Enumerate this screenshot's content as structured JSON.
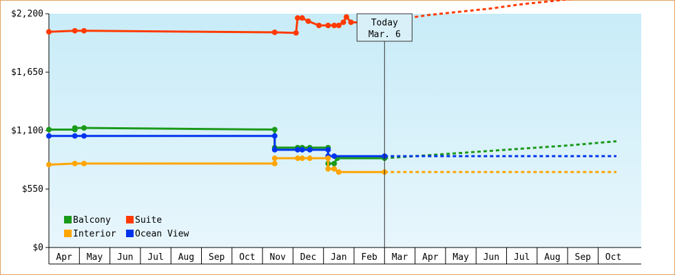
{
  "chart_data": {
    "type": "line",
    "x_categories": [
      "Apr",
      "May",
      "Jun",
      "Jul",
      "Aug",
      "Sep",
      "Oct",
      "Nov",
      "Dec",
      "Jan",
      "Feb",
      "Mar",
      "Apr",
      "May",
      "Jun",
      "Jul",
      "Aug",
      "Sep",
      "Oct"
    ],
    "y_ticks": [
      "$0",
      "$550",
      "$1,100",
      "$1,650",
      "$2,200"
    ],
    "ylim": [
      0,
      2200
    ],
    "grid": false,
    "legend_placement": "bottom-left",
    "today_marker": {
      "line1": "Today",
      "line2": "Mar. 6",
      "x": 11.0
    },
    "colors": {
      "Balcony": "#1a9a1a",
      "Suite": "#ff3a00",
      "Interior": "#ffa500",
      "Ocean View": "#0033ee",
      "plot_bg_top": "#c8ecf8",
      "plot_bg_bottom": "#e8f6fc"
    },
    "series": [
      {
        "name": "Suite",
        "history": [
          [
            0,
            2030
          ],
          [
            0.85,
            2040
          ],
          [
            1.15,
            2040
          ],
          [
            7.4,
            2025
          ],
          [
            8.1,
            2020
          ],
          [
            8.15,
            2160
          ],
          [
            8.3,
            2160
          ],
          [
            8.5,
            2130
          ],
          [
            8.85,
            2090
          ],
          [
            9.15,
            2090
          ],
          [
            9.35,
            2090
          ],
          [
            9.5,
            2090
          ],
          [
            9.65,
            2120
          ],
          [
            9.75,
            2170
          ],
          [
            9.9,
            2120
          ],
          [
            11.0,
            2110
          ]
        ],
        "forecast": [
          [
            11.0,
            2110
          ],
          [
            11.5,
            2150
          ],
          [
            12.5,
            2190
          ],
          [
            13.5,
            2220
          ],
          [
            14.5,
            2250
          ],
          [
            15.5,
            2290
          ],
          [
            16.5,
            2320
          ],
          [
            17.5,
            2350
          ],
          [
            18.6,
            2390
          ]
        ]
      },
      {
        "name": "Balcony",
        "history": [
          [
            0,
            1110
          ],
          [
            0.85,
            1110
          ],
          [
            0.85,
            1125
          ],
          [
            1.15,
            1125
          ],
          [
            7.4,
            1110
          ],
          [
            7.4,
            940
          ],
          [
            8.15,
            940
          ],
          [
            8.3,
            940
          ],
          [
            8.55,
            940
          ],
          [
            9.15,
            940
          ],
          [
            9.15,
            790
          ],
          [
            9.35,
            790
          ],
          [
            9.45,
            840
          ],
          [
            11.0,
            840
          ]
        ],
        "forecast": [
          [
            11.0,
            840
          ],
          [
            12.0,
            860
          ],
          [
            13.0,
            880
          ],
          [
            14.0,
            900
          ],
          [
            15.0,
            920
          ],
          [
            16.0,
            940
          ],
          [
            17.0,
            960
          ],
          [
            18.0,
            985
          ],
          [
            18.6,
            1000
          ]
        ]
      },
      {
        "name": "Ocean View",
        "history": [
          [
            0,
            1050
          ],
          [
            0.85,
            1050
          ],
          [
            1.15,
            1050
          ],
          [
            7.4,
            1050
          ],
          [
            7.4,
            920
          ],
          [
            8.15,
            920
          ],
          [
            8.3,
            920
          ],
          [
            8.55,
            920
          ],
          [
            9.15,
            920
          ],
          [
            9.15,
            860
          ],
          [
            9.35,
            860
          ],
          [
            11.0,
            860
          ]
        ],
        "forecast": [
          [
            11.0,
            860
          ],
          [
            18.6,
            860
          ]
        ]
      },
      {
        "name": "Interior",
        "history": [
          [
            0,
            780
          ],
          [
            0.85,
            790
          ],
          [
            1.15,
            790
          ],
          [
            7.4,
            790
          ],
          [
            7.4,
            840
          ],
          [
            8.15,
            840
          ],
          [
            8.3,
            840
          ],
          [
            8.55,
            840
          ],
          [
            9.15,
            840
          ],
          [
            9.15,
            740
          ],
          [
            9.35,
            740
          ],
          [
            9.5,
            710
          ],
          [
            11.0,
            710
          ]
        ],
        "forecast": [
          [
            11.0,
            710
          ],
          [
            18.6,
            710
          ]
        ]
      }
    ]
  }
}
